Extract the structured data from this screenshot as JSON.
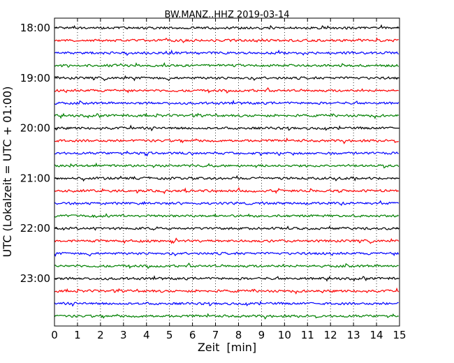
{
  "chart_data": {
    "type": "line",
    "title": "BW.MANZ..HHZ 2019-03-14",
    "xlabel": "Zeit  [min]",
    "ylabel": "UTC (Lokalzeit = UTC + 01:00)",
    "xlim": [
      0,
      15
    ],
    "x_ticks": [
      "0",
      "1",
      "2",
      "3",
      "4",
      "5",
      "6",
      "7",
      "8",
      "9",
      "10",
      "11",
      "12",
      "13",
      "14",
      "15"
    ],
    "y_ticks": [
      "18:00",
      "19:00",
      "20:00",
      "21:00",
      "22:00",
      "23:00"
    ],
    "grid": "vertical dotted lines at each minute",
    "trace_interval_minutes": 15,
    "trace_color_cycle": [
      "#000000",
      "#ff0000",
      "#0000ff",
      "#008000"
    ],
    "series": [
      {
        "start": "18:00",
        "color": "#000000"
      },
      {
        "start": "18:15",
        "color": "#ff0000"
      },
      {
        "start": "18:30",
        "color": "#0000ff"
      },
      {
        "start": "18:45",
        "color": "#008000"
      },
      {
        "start": "19:00",
        "color": "#000000"
      },
      {
        "start": "19:15",
        "color": "#ff0000"
      },
      {
        "start": "19:30",
        "color": "#0000ff"
      },
      {
        "start": "19:45",
        "color": "#008000"
      },
      {
        "start": "20:00",
        "color": "#000000"
      },
      {
        "start": "20:15",
        "color": "#ff0000"
      },
      {
        "start": "20:30",
        "color": "#0000ff"
      },
      {
        "start": "20:45",
        "color": "#008000"
      },
      {
        "start": "21:00",
        "color": "#000000"
      },
      {
        "start": "21:15",
        "color": "#ff0000"
      },
      {
        "start": "21:30",
        "color": "#0000ff"
      },
      {
        "start": "21:45",
        "color": "#008000"
      },
      {
        "start": "22:00",
        "color": "#000000"
      },
      {
        "start": "22:15",
        "color": "#ff0000"
      },
      {
        "start": "22:30",
        "color": "#0000ff"
      },
      {
        "start": "22:45",
        "color": "#008000"
      },
      {
        "start": "23:00",
        "color": "#000000"
      },
      {
        "start": "23:15",
        "color": "#ff0000"
      },
      {
        "start": "23:30",
        "color": "#0000ff"
      },
      {
        "start": "23:45",
        "color": "#008000"
      }
    ]
  }
}
